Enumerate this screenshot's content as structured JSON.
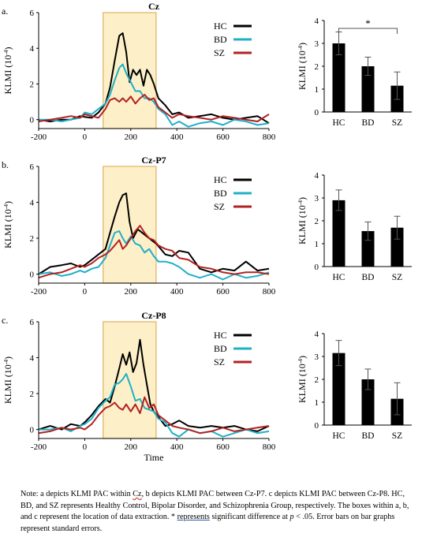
{
  "chart_data": [
    {
      "type": "line",
      "panel_letter": "a.",
      "title": "Cz",
      "xlabel": "",
      "ylabel": "KLMI (10",
      "ylabel_exp": "-4",
      "ylabel_close": ")",
      "xlim": [
        -200,
        800
      ],
      "ylim": [
        -0.5,
        6
      ],
      "xticks": [
        "-200",
        "0",
        "200",
        "400",
        "600",
        "800"
      ],
      "yticks": [
        "0",
        "2",
        "4",
        "6"
      ],
      "highlight": [
        80,
        310
      ],
      "legend": [
        "HC",
        "BD",
        "SZ"
      ],
      "series": [
        {
          "name": "HC",
          "color": "#000000",
          "x": [
            -200,
            -150,
            -100,
            -60,
            -20,
            0,
            30,
            60,
            90,
            110,
            130,
            150,
            165,
            180,
            195,
            210,
            225,
            240,
            255,
            270,
            285,
            300,
            320,
            350,
            380,
            410,
            450,
            500,
            550,
            600,
            650,
            700,
            750,
            800
          ],
          "y": [
            0,
            -0.1,
            0,
            0,
            0.2,
            0.15,
            0.1,
            0.4,
            0.9,
            1.8,
            3.3,
            4.7,
            4.85,
            3.8,
            2.1,
            2.8,
            2.5,
            2.8,
            1.9,
            2.8,
            2.5,
            2,
            1.2,
            0.8,
            0.3,
            0.4,
            0.1,
            0.2,
            0.3,
            0.1,
            0,
            0.1,
            0.2,
            -0.2
          ]
        },
        {
          "name": "BD",
          "color": "#1fb0c8",
          "x": [
            -200,
            -150,
            -100,
            -60,
            -20,
            0,
            30,
            60,
            90,
            110,
            130,
            150,
            165,
            180,
            200,
            220,
            240,
            260,
            280,
            300,
            320,
            350,
            380,
            410,
            450,
            500,
            550,
            600,
            650,
            700,
            750,
            800
          ],
          "y": [
            0,
            0,
            -0.1,
            0,
            0.1,
            0.4,
            0.3,
            0.6,
            0.9,
            1.4,
            2.2,
            2.9,
            3.1,
            2.6,
            2.1,
            1.6,
            1.6,
            1.2,
            1.2,
            1,
            0.6,
            0.3,
            -0.3,
            -0.1,
            -0.4,
            -0.2,
            -0.1,
            -0.3,
            0,
            -0.1,
            -0.3,
            -0.2
          ]
        },
        {
          "name": "SZ",
          "color": "#b22222",
          "x": [
            -200,
            -150,
            -100,
            -60,
            -20,
            0,
            30,
            60,
            90,
            110,
            130,
            150,
            165,
            180,
            200,
            220,
            240,
            260,
            280,
            300,
            320,
            350,
            380,
            410,
            450,
            500,
            550,
            600,
            650,
            700,
            750,
            800
          ],
          "y": [
            -0.1,
            0,
            0.1,
            0.2,
            0.1,
            0.3,
            0.2,
            0.1,
            0.6,
            1.1,
            1.2,
            1.0,
            1.2,
            1.0,
            1.3,
            0.9,
            1.2,
            1.4,
            1.1,
            1.2,
            0.7,
            0.4,
            0.1,
            0.3,
            0.2,
            0.1,
            0,
            0.2,
            0.1,
            0,
            -0.1,
            0.3
          ]
        }
      ]
    },
    {
      "type": "bar",
      "title": "",
      "ylabel": "KLMI (10",
      "ylabel_exp": "-4",
      "ylabel_close": ")",
      "categories": [
        "HC",
        "BD",
        "SZ"
      ],
      "values": [
        3.0,
        2.0,
        1.15
      ],
      "errors": [
        0.5,
        0.4,
        0.6
      ],
      "ylim": [
        0,
        4
      ],
      "yticks": [
        "0",
        "1",
        "2",
        "3",
        "4"
      ],
      "significance": {
        "from": "HC",
        "to": "SZ",
        "label": "*"
      }
    },
    {
      "type": "line",
      "panel_letter": "b.",
      "title": "Cz-P7",
      "xlabel": "",
      "ylabel": "KLMI (10",
      "ylabel_exp": "-4",
      "ylabel_close": ")",
      "xlim": [
        -200,
        800
      ],
      "ylim": [
        -0.5,
        6
      ],
      "xticks": [
        "-200",
        "0",
        "200",
        "400",
        "600",
        "800"
      ],
      "yticks": [
        "0",
        "2",
        "4",
        "6"
      ],
      "highlight": [
        80,
        310
      ],
      "legend": [
        "HC",
        "BD",
        "SZ"
      ],
      "series": [
        {
          "name": "HC",
          "color": "#000000",
          "x": [
            -200,
            -150,
            -100,
            -60,
            -20,
            0,
            30,
            60,
            90,
            110,
            130,
            150,
            165,
            180,
            195,
            210,
            230,
            250,
            270,
            290,
            310,
            330,
            350,
            380,
            410,
            450,
            500,
            550,
            600,
            650,
            700,
            750,
            800
          ],
          "y": [
            0,
            0.4,
            0.5,
            0.6,
            0.4,
            0.5,
            0.8,
            1.1,
            1.4,
            2.3,
            3.2,
            4.0,
            4.4,
            4.5,
            2.9,
            2.0,
            2.5,
            2.3,
            2.1,
            1.9,
            1.7,
            1.4,
            1.1,
            1.0,
            1.3,
            1.2,
            0.3,
            0.1,
            0.3,
            0.2,
            0.7,
            0.2,
            0.3
          ]
        },
        {
          "name": "BD",
          "color": "#1fb0c8",
          "x": [
            -200,
            -150,
            -100,
            -60,
            -20,
            0,
            30,
            60,
            90,
            110,
            130,
            150,
            165,
            180,
            200,
            220,
            240,
            260,
            280,
            300,
            320,
            350,
            380,
            410,
            450,
            500,
            550,
            600,
            650,
            700,
            750,
            800
          ],
          "y": [
            0,
            0.1,
            -0.1,
            0,
            0.2,
            0.1,
            0.3,
            0.4,
            0.9,
            1.6,
            2.3,
            2.4,
            2.0,
            1.7,
            2.1,
            1.7,
            1.6,
            1.2,
            1.4,
            1.0,
            0.7,
            0.7,
            0.6,
            0.4,
            0,
            -0.2,
            0,
            -0.3,
            0,
            -0.2,
            -0.1,
            0.1
          ]
        },
        {
          "name": "SZ",
          "color": "#b22222",
          "x": [
            -200,
            -150,
            -100,
            -60,
            -20,
            0,
            30,
            60,
            90,
            110,
            130,
            150,
            165,
            180,
            200,
            220,
            240,
            260,
            280,
            300,
            320,
            350,
            380,
            410,
            450,
            500,
            550,
            600,
            650,
            700,
            750,
            800
          ],
          "y": [
            -0.2,
            0,
            0.1,
            0.3,
            0.5,
            0.4,
            0.6,
            0.9,
            1.1,
            1.3,
            1.6,
            1.9,
            1.4,
            1.6,
            2.0,
            2.4,
            2.7,
            2.3,
            2.0,
            1.9,
            1.6,
            1.4,
            1.3,
            0.9,
            0.8,
            0.4,
            0.3,
            0.1,
            0,
            0.1,
            0.1,
            0
          ]
        }
      ]
    },
    {
      "type": "bar",
      "title": "",
      "ylabel": "KLMI (10",
      "ylabel_exp": "-4",
      "ylabel_close": ")",
      "categories": [
        "HC",
        "BD",
        "SZ"
      ],
      "values": [
        2.9,
        1.55,
        1.7
      ],
      "errors": [
        0.45,
        0.4,
        0.5
      ],
      "ylim": [
        0,
        4
      ],
      "yticks": [
        "0",
        "1",
        "2",
        "3",
        "4"
      ]
    },
    {
      "type": "line",
      "panel_letter": "c.",
      "title": "Cz-P8",
      "xlabel": "Time",
      "ylabel": "KLMI (10",
      "ylabel_exp": "-4",
      "ylabel_close": ")",
      "xlim": [
        -200,
        800
      ],
      "ylim": [
        -0.5,
        6
      ],
      "xticks": [
        "-200",
        "0",
        "200",
        "400",
        "600",
        "800"
      ],
      "yticks": [
        "0",
        "2",
        "4",
        "6"
      ],
      "highlight": [
        80,
        310
      ],
      "legend": [
        "HC",
        "BD",
        "SZ"
      ],
      "series": [
        {
          "name": "HC",
          "color": "#000000",
          "x": [
            -200,
            -150,
            -100,
            -60,
            -20,
            0,
            30,
            60,
            90,
            110,
            130,
            150,
            165,
            180,
            195,
            210,
            225,
            240,
            255,
            270,
            285,
            300,
            320,
            350,
            380,
            410,
            450,
            500,
            550,
            600,
            650,
            700,
            750,
            800
          ],
          "y": [
            0,
            0.2,
            0,
            0.3,
            0.2,
            0.4,
            0.8,
            1.3,
            1.7,
            1.5,
            2.4,
            3.4,
            4.2,
            3.6,
            4.3,
            3.2,
            3.7,
            5.0,
            3.6,
            2.5,
            1.4,
            1.0,
            0.7,
            0.2,
            0.3,
            0.5,
            0.2,
            0.1,
            0.2,
            0.1,
            0.2,
            0,
            -0.1,
            0.2
          ]
        },
        {
          "name": "BD",
          "color": "#1fb0c8",
          "x": [
            -200,
            -150,
            -100,
            -60,
            -20,
            0,
            30,
            60,
            90,
            110,
            130,
            150,
            165,
            180,
            200,
            220,
            240,
            260,
            280,
            300,
            320,
            350,
            380,
            410,
            450,
            500,
            550,
            600,
            650,
            700,
            750,
            800
          ],
          "y": [
            0,
            0,
            0.1,
            -0.1,
            0.2,
            0.3,
            0.6,
            1.2,
            1.6,
            1.8,
            2.5,
            2.6,
            2.8,
            3.1,
            2.4,
            1.6,
            1.7,
            1.2,
            1.1,
            1.0,
            0.6,
            0.4,
            -0.2,
            -0.4,
            0,
            -0.2,
            -0.1,
            -0.4,
            -0.2,
            0,
            -0.2,
            -0.1
          ]
        },
        {
          "name": "SZ",
          "color": "#b22222",
          "x": [
            -200,
            -150,
            -100,
            -60,
            -20,
            0,
            30,
            60,
            90,
            110,
            130,
            150,
            165,
            180,
            200,
            220,
            240,
            260,
            280,
            300,
            320,
            350,
            380,
            410,
            450,
            500,
            550,
            600,
            650,
            700,
            750,
            800
          ],
          "y": [
            -0.2,
            -0.1,
            0.1,
            0,
            0.1,
            0,
            0.3,
            0.8,
            1.2,
            1.3,
            1.5,
            1.2,
            1.1,
            1.4,
            1.0,
            1.4,
            0.9,
            1.8,
            1.2,
            1.4,
            0.8,
            0.5,
            0.2,
            0.1,
            0,
            -0.2,
            -0.1,
            0.1,
            -0.1,
            0,
            0.1,
            0.2
          ]
        }
      ]
    },
    {
      "type": "bar",
      "title": "",
      "ylabel": "KLMI (10",
      "ylabel_exp": "-4",
      "ylabel_close": ")",
      "categories": [
        "HC",
        "BD",
        "SZ"
      ],
      "values": [
        3.15,
        2.0,
        1.15
      ],
      "errors": [
        0.55,
        0.45,
        0.7
      ],
      "ylim": [
        0,
        4
      ],
      "yticks": [
        "0",
        "1",
        "2",
        "3",
        "4"
      ]
    }
  ],
  "note": {
    "p1": "Note: a depicts KLMI PAC within ",
    "cz": "Cz",
    "p2": ", b depicts KLMI PAC between Cz-P7. c depicts KLMI PAC between Cz-P8. HC, BD, and SZ represents Healthy Control, Bipolar Disorder, and Schizophrenia Group, respectively. The boxes within a, b, and c represent the location of data extraction. * ",
    "represents": "represents",
    "p3": " significant difference at ",
    "p_sym": "p",
    "p4": " < .05. Error bars on bar graphs represent standard errors."
  }
}
